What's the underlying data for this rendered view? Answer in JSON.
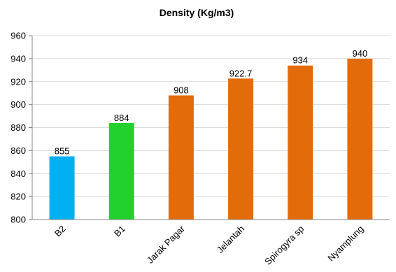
{
  "chart_data": {
    "type": "bar",
    "title": "Density (Kg/m3)",
    "xlabel": "",
    "ylabel": "",
    "categories": [
      "B2",
      "B1",
      "Jarak Pagar",
      "Jelantah",
      "Spirogyra sp",
      "Nyamplung"
    ],
    "values": [
      855,
      884,
      908,
      922.7,
      934,
      940
    ],
    "data_labels": [
      "855",
      "884",
      "908",
      "922.7",
      "934",
      "940"
    ],
    "bar_colors": [
      "#00B0F0",
      "#22D12E",
      "#E36C0A",
      "#E36C0A",
      "#E36C0A",
      "#E36C0A"
    ],
    "ylim": [
      800,
      960
    ],
    "yticks": [
      800,
      820,
      840,
      860,
      880,
      900,
      920,
      940,
      960
    ],
    "grid": true,
    "legend": "none"
  }
}
